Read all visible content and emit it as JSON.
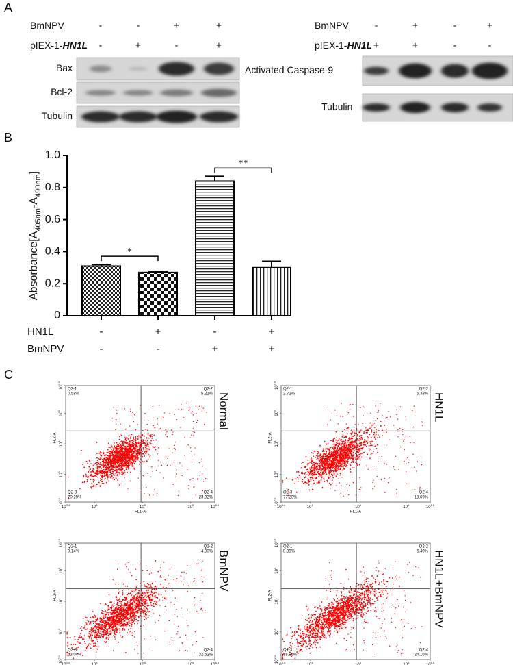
{
  "panel_labels": [
    "A",
    "B",
    "C"
  ],
  "blot_left": {
    "conditions": [
      {
        "name": [
          "BmNPV"
        ],
        "marks": [
          "-",
          "-",
          "+",
          "+"
        ]
      },
      {
        "name": [
          "pIEX-1-",
          "HN1L"
        ],
        "marks": [
          "-",
          "+",
          "-",
          "+"
        ]
      }
    ],
    "bands": [
      "Bax",
      "Bcl-2",
      "Tubulin"
    ]
  },
  "blot_right": {
    "conditions": [
      {
        "name": [
          "BmNPV"
        ],
        "marks": [
          "-",
          "+",
          "-",
          "+"
        ]
      },
      {
        "name": [
          "pIEX-1-",
          "HN1L"
        ],
        "marks": [
          "+",
          "+",
          "-",
          "-"
        ]
      }
    ],
    "bands": [
      "Activated Caspase-9",
      "Tubulin"
    ]
  },
  "chart_data": {
    "type": "bar",
    "y_label": [
      "Absorbance[A",
      "405nm",
      "-A",
      "490nm",
      "]"
    ],
    "values": [
      0.31,
      0.27,
      0.84,
      0.3
    ],
    "errors": [
      0.01,
      0.005,
      0.03,
      0.04
    ],
    "ylim": [
      0,
      1.0
    ],
    "yticks": [
      0,
      0.2,
      0.4,
      0.6,
      0.8,
      {
        "value": 1.0,
        "label": "1.0"
      }
    ],
    "significance": [
      "*",
      "**"
    ],
    "conditions": [
      {
        "name": "HN1L",
        "marks": [
          "-",
          "+",
          "-",
          "+"
        ]
      },
      {
        "name": "BmNPV",
        "marks": [
          "-",
          "-",
          "+",
          "+"
        ]
      }
    ]
  },
  "flow": {
    "x_label": "FL1-A",
    "y_label": "FL2-A",
    "xlim": [
      3.4,
      6.5
    ],
    "ylim": [
      2.1,
      5.9
    ],
    "xticks": [
      {
        "value": 3.4,
        "label": [
          "10",
          "3.4"
        ]
      },
      {
        "value": 4,
        "label": [
          "10",
          "4"
        ]
      },
      {
        "value": 5,
        "label": [
          "10",
          "5"
        ]
      },
      {
        "value": 6,
        "label": [
          "10",
          "6"
        ]
      },
      {
        "value": 6.5,
        "label": [
          "10",
          "6.5"
        ]
      }
    ],
    "yticks": [
      {
        "value": 2.1,
        "label": [
          "10",
          "2.1"
        ]
      },
      {
        "value": 3,
        "label": [
          "10",
          "3"
        ]
      },
      {
        "value": 4,
        "label": [
          "10",
          "4"
        ]
      },
      {
        "value": 5,
        "label": [
          "10",
          "5"
        ]
      },
      {
        "value": 5.9,
        "label": [
          "10",
          "5.9"
        ]
      }
    ],
    "plots": [
      {
        "label": "Normal",
        "quadrants": [
          {
            "name": "Q2-1",
            "value": "0.58%"
          },
          {
            "name": "Q2-2",
            "value": "5.21%"
          },
          {
            "name": "Q2-3",
            "value": "70.29%"
          },
          {
            "name": "Q2-4",
            "value": "23.92%"
          }
        ]
      },
      {
        "label": "HN1L",
        "quadrants": [
          {
            "name": "Q2-1",
            "value": "2.72%"
          },
          {
            "name": "Q2-2",
            "value": "6.38%"
          },
          {
            "name": "Q2-3",
            "value": "77.20%"
          },
          {
            "name": "Q2-4",
            "value": "13.69%"
          }
        ]
      },
      {
        "label": "BmNPV",
        "quadrants": [
          {
            "name": "Q2-1",
            "value": "0.14%"
          },
          {
            "name": "Q2-2",
            "value": "4.30%"
          },
          {
            "name": "Q2-3",
            "value": "63.04%"
          },
          {
            "name": "Q2-4",
            "value": "32.52%"
          }
        ]
      },
      {
        "label": "HN1L+BmNPV",
        "quadrants": [
          {
            "name": "Q2-1",
            "value": "0.39%"
          },
          {
            "name": "Q2-2",
            "value": "6.49%"
          },
          {
            "name": "Q2-3",
            "value": "68.96%"
          },
          {
            "name": "Q2-4",
            "value": "24.16%"
          }
        ]
      }
    ]
  }
}
